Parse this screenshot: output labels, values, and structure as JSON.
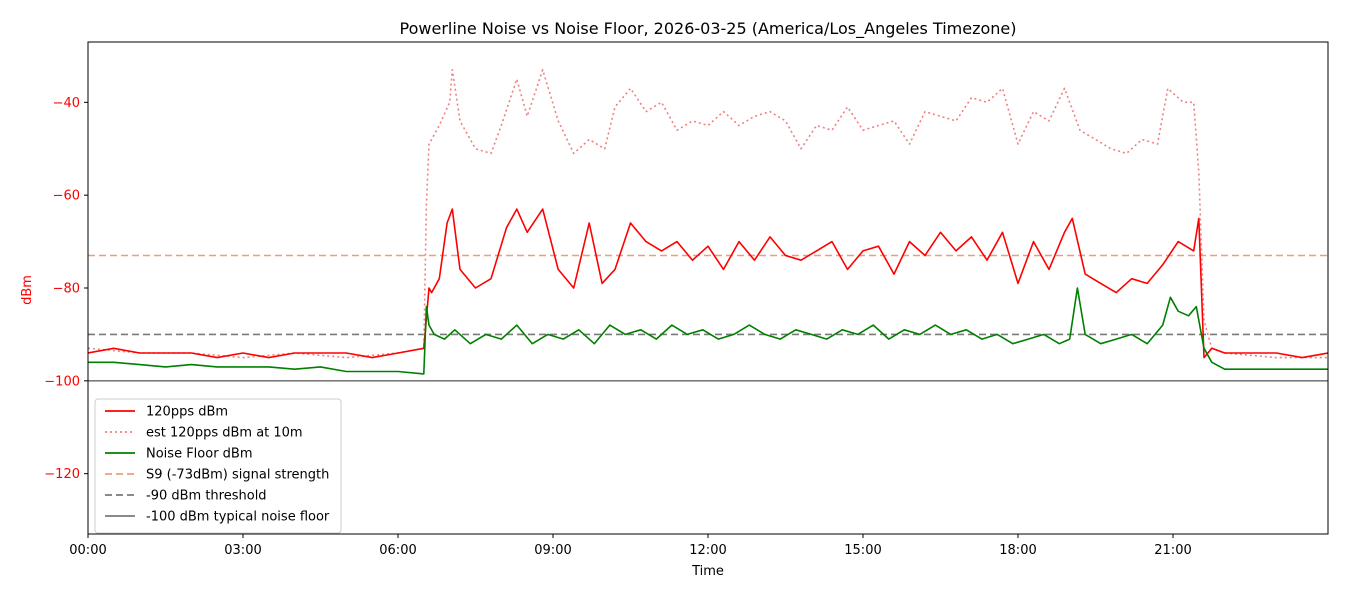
{
  "chart_data": {
    "type": "line",
    "title": "Powerline Noise vs Noise Floor, 2026-03-25 (America/Los_Angeles Timezone)",
    "xlabel": "Time",
    "ylabel": "dBm",
    "xlim": [
      "00:00",
      "24:00"
    ],
    "ylim": [
      -133,
      -27
    ],
    "x_ticks": [
      "00:00",
      "03:00",
      "06:00",
      "09:00",
      "12:00",
      "15:00",
      "18:00",
      "21:00"
    ],
    "y_ticks": [
      -40,
      -60,
      -80,
      -100,
      -120
    ],
    "y_tick_labels": [
      "−40",
      "−60",
      "−80",
      "−100",
      "−120"
    ],
    "grid": false,
    "legend_position": "lower-left",
    "x_unit": "hour of day",
    "series": [
      {
        "name": "120pps dBm",
        "color": "#ff0000",
        "style": "solid",
        "x": [
          0,
          0.5,
          1,
          1.5,
          2,
          2.5,
          3,
          3.5,
          4,
          4.5,
          5,
          5.5,
          6,
          6.5,
          6.6,
          6.65,
          6.8,
          6.95,
          7.05,
          7.2,
          7.5,
          7.8,
          8.1,
          8.3,
          8.5,
          8.8,
          9.1,
          9.4,
          9.7,
          9.95,
          10.2,
          10.5,
          10.8,
          11.1,
          11.4,
          11.7,
          12.0,
          12.3,
          12.6,
          12.9,
          13.2,
          13.5,
          13.8,
          14.1,
          14.4,
          14.7,
          15.0,
          15.3,
          15.6,
          15.9,
          16.2,
          16.5,
          16.8,
          17.1,
          17.4,
          17.7,
          18.0,
          18.3,
          18.6,
          18.9,
          19.05,
          19.3,
          19.6,
          19.9,
          20.2,
          20.5,
          20.8,
          21.1,
          21.4,
          21.5,
          21.6,
          21.75,
          22.0,
          22.5,
          23.0,
          23.5,
          24
        ],
        "y": [
          -94,
          -93,
          -94,
          -94,
          -94,
          -95,
          -94,
          -95,
          -94,
          -94,
          -94,
          -95,
          -94,
          -93,
          -80,
          -81,
          -78,
          -66,
          -63,
          -76,
          -80,
          -78,
          -67,
          -63,
          -68,
          -63,
          -76,
          -80,
          -66,
          -79,
          -76,
          -66,
          -70,
          -72,
          -70,
          -74,
          -71,
          -76,
          -70,
          -74,
          -69,
          -73,
          -74,
          -72,
          -70,
          -76,
          -72,
          -71,
          -77,
          -70,
          -73,
          -68,
          -72,
          -69,
          -74,
          -68,
          -79,
          -70,
          -76,
          -68,
          -65,
          -77,
          -79,
          -81,
          -78,
          -79,
          -75,
          -70,
          -72,
          -65,
          -95,
          -93,
          -94,
          -94,
          -94,
          -95,
          -94
        ]
      },
      {
        "name": "est 120pps dBm at 10m",
        "color": "#f08080",
        "style": "dotted",
        "x": [
          0,
          1,
          2,
          3,
          4,
          5,
          6,
          6.5,
          6.55,
          6.6,
          6.8,
          7.0,
          7.05,
          7.2,
          7.5,
          7.8,
          8.0,
          8.3,
          8.5,
          8.8,
          9.1,
          9.4,
          9.7,
          10.0,
          10.2,
          10.5,
          10.8,
          11.1,
          11.4,
          11.7,
          12.0,
          12.3,
          12.6,
          12.9,
          13.2,
          13.5,
          13.8,
          14.1,
          14.4,
          14.7,
          15.0,
          15.3,
          15.6,
          15.9,
          16.2,
          16.5,
          16.8,
          17.1,
          17.4,
          17.7,
          18.0,
          18.3,
          18.6,
          18.9,
          19.2,
          19.5,
          19.8,
          20.1,
          20.4,
          20.7,
          20.9,
          21.2,
          21.4,
          21.5,
          21.6,
          21.75,
          22.0,
          23.0,
          24
        ],
        "y": [
          -93,
          -94,
          -94,
          -95,
          -94,
          -95,
          -94,
          -93,
          -62,
          -49,
          -45,
          -40,
          -33,
          -44,
          -50,
          -51,
          -45,
          -35,
          -43,
          -33,
          -44,
          -51,
          -48,
          -50,
          -41,
          -37,
          -42,
          -40,
          -46,
          -44,
          -45,
          -42,
          -45,
          -43,
          -42,
          -44,
          -50,
          -45,
          -46,
          -41,
          -46,
          -45,
          -44,
          -49,
          -42,
          -43,
          -44,
          -39,
          -40,
          -37,
          -49,
          -42,
          -44,
          -37,
          -46,
          -48,
          -50,
          -51,
          -48,
          -49,
          -37,
          -40,
          -40,
          -55,
          -87,
          -93,
          -94,
          -95,
          -95
        ]
      },
      {
        "name": "Noise Floor dBm",
        "color": "#008000",
        "style": "solid",
        "x": [
          0,
          0.5,
          1,
          1.5,
          2,
          2.5,
          3,
          3.5,
          4,
          4.5,
          5,
          5.5,
          6,
          6.5,
          6.55,
          6.6,
          6.7,
          6.9,
          7.1,
          7.4,
          7.7,
          8.0,
          8.3,
          8.6,
          8.9,
          9.2,
          9.5,
          9.8,
          10.1,
          10.4,
          10.7,
          11.0,
          11.3,
          11.6,
          11.9,
          12.2,
          12.5,
          12.8,
          13.1,
          13.4,
          13.7,
          14.0,
          14.3,
          14.6,
          14.9,
          15.2,
          15.5,
          15.8,
          16.1,
          16.4,
          16.7,
          17.0,
          17.3,
          17.6,
          17.9,
          18.2,
          18.5,
          18.8,
          19.0,
          19.15,
          19.3,
          19.6,
          19.9,
          20.2,
          20.5,
          20.8,
          20.95,
          21.1,
          21.3,
          21.45,
          21.6,
          21.75,
          22.0,
          22.5,
          23.0,
          23.5,
          24
        ],
        "y": [
          -96,
          -96,
          -96.5,
          -97,
          -96.5,
          -97,
          -97,
          -97,
          -97.5,
          -97,
          -98,
          -98,
          -98,
          -98.5,
          -84,
          -88,
          -90,
          -91,
          -89,
          -92,
          -90,
          -91,
          -88,
          -92,
          -90,
          -91,
          -89,
          -92,
          -88,
          -90,
          -89,
          -91,
          -88,
          -90,
          -89,
          -91,
          -90,
          -88,
          -90,
          -91,
          -89,
          -90,
          -91,
          -89,
          -90,
          -88,
          -91,
          -89,
          -90,
          -88,
          -90,
          -89,
          -91,
          -90,
          -92,
          -91,
          -90,
          -92,
          -91,
          -80,
          -90,
          -92,
          -91,
          -90,
          -92,
          -88,
          -82,
          -85,
          -86,
          -84,
          -93,
          -96,
          -97.5,
          -97.5,
          -97.5,
          -97.5,
          -97.5
        ]
      },
      {
        "name": "S9 (-73dBm) signal strength",
        "color": "#e8a07a",
        "style": "dashed",
        "x": [
          0,
          24
        ],
        "y": [
          -73,
          -73
        ]
      },
      {
        "name": "-90 dBm threshold",
        "color": "#7a7a7a",
        "style": "dashed",
        "x": [
          0,
          24
        ],
        "y": [
          -90,
          -90
        ]
      },
      {
        "name": "-100 dBm typical noise floor",
        "color": "#7a7a7a",
        "style": "solid",
        "x": [
          0,
          24
        ],
        "y": [
          -100,
          -100
        ]
      }
    ]
  },
  "colors": {
    "axis": "#000000",
    "ylabel_color": "#ff0000",
    "ytick_color": "#ff0000"
  }
}
